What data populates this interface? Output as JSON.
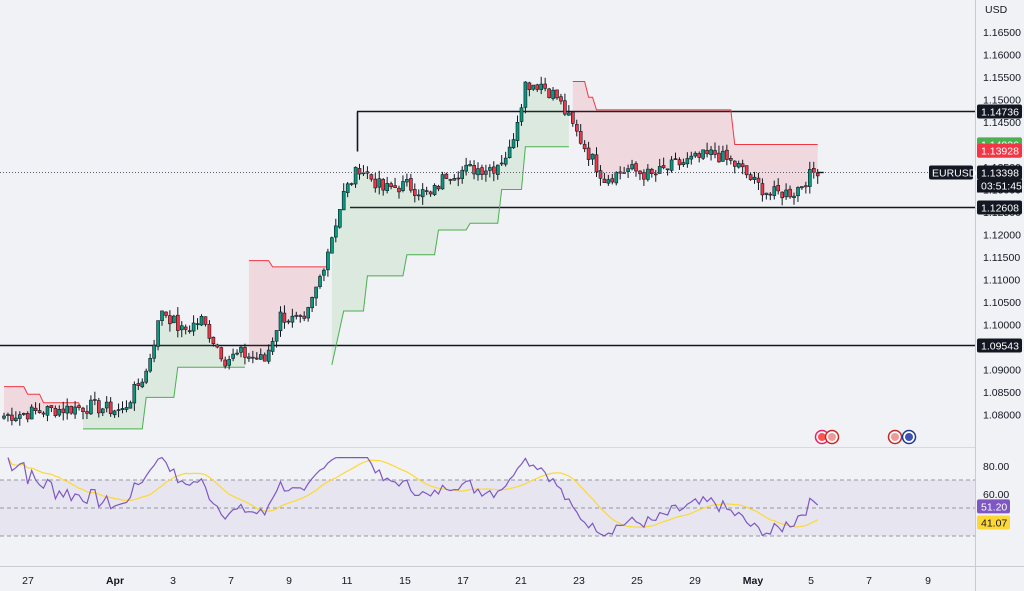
{
  "chart_data": {
    "type": "candlestick",
    "symbol": "EURUSD",
    "currency": "USD",
    "countdown": "03:51:45",
    "price_axis": {
      "min": 1.076,
      "max": 1.168,
      "ticks": [
        "1.16500",
        "1.16000",
        "1.15500",
        "1.15000",
        "1.14500",
        "1.14000",
        "1.13500",
        "1.13000",
        "1.12500",
        "1.12000",
        "1.11500",
        "1.11000",
        "1.10500",
        "1.10000",
        "1.09500",
        "1.09000",
        "1.08500",
        "1.08000"
      ]
    },
    "time_axis": {
      "labels": [
        {
          "label": "27",
          "bold": false
        },
        {
          "label": "Apr",
          "bold": true
        },
        {
          "label": "3",
          "bold": false
        },
        {
          "label": "7",
          "bold": false
        },
        {
          "label": "9",
          "bold": false
        },
        {
          "label": "11",
          "bold": false
        },
        {
          "label": "15",
          "bold": false
        },
        {
          "label": "17",
          "bold": false
        },
        {
          "label": "21",
          "bold": false
        },
        {
          "label": "23",
          "bold": false
        },
        {
          "label": "25",
          "bold": false
        },
        {
          "label": "29",
          "bold": false
        },
        {
          "label": "May",
          "bold": true
        },
        {
          "label": "5",
          "bold": false
        },
        {
          "label": "7",
          "bold": false
        },
        {
          "label": "9",
          "bold": false
        }
      ]
    },
    "horizontal_levels": [
      {
        "label": "1.14736",
        "value": 1.14736
      },
      {
        "label": "1.12608",
        "value": 1.12608
      },
      {
        "label": "1.09543",
        "value": 1.09543
      }
    ],
    "price_tags": [
      {
        "label": "1.14026",
        "value": 1.14026,
        "color": "#4caf50"
      },
      {
        "label": "1.13928",
        "value": 1.13928,
        "color": "#f23645"
      },
      {
        "label": "1.13398",
        "value": 1.13398,
        "color": "#131722"
      }
    ],
    "current_price": 1.13398,
    "candles_ohlc_anchors": [
      {
        "date": "Mar 27",
        "close": 1.0795
      },
      {
        "date": "Apr 1",
        "close": 1.0812
      },
      {
        "date": "Apr 3",
        "close": 1.092
      },
      {
        "date": "Apr 4",
        "close": 1.103
      },
      {
        "date": "Apr 7",
        "close": 1.0905
      },
      {
        "date": "Apr 9",
        "close": 1.096
      },
      {
        "date": "Apr 10",
        "close": 1.113
      },
      {
        "date": "Apr 11",
        "close": 1.135
      },
      {
        "date": "Apr 15",
        "close": 1.131
      },
      {
        "date": "Apr 17",
        "close": 1.136
      },
      {
        "date": "Apr 21",
        "close": 1.151
      },
      {
        "date": "Apr 22",
        "close": 1.155
      },
      {
        "date": "Apr 23",
        "close": 1.139
      },
      {
        "date": "Apr 25",
        "close": 1.136
      },
      {
        "date": "Apr 29",
        "close": 1.138
      },
      {
        "date": "May 2",
        "close": 1.129
      },
      {
        "date": "May 5",
        "close": 1.134
      }
    ],
    "rsi": {
      "levels": [
        "80.00",
        "60.00"
      ],
      "value": "51.20",
      "signal": "41.07",
      "value_color": "#7e57c2",
      "signal_color": "#fdd835",
      "upper_band": 70,
      "lower_band": 30,
      "mid": 50
    },
    "event_icons": [
      {
        "name": "earnings-flags"
      },
      {
        "name": "us-eu-flags"
      }
    ],
    "colors": {
      "up": "#089981",
      "down": "#f23645",
      "supertrend_up": "#4caf50",
      "supertrend_down": "#f23645",
      "rsi_line": "#7e57c2",
      "rsi_ma": "#fdd835"
    }
  }
}
